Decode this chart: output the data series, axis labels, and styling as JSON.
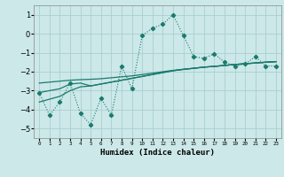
{
  "x": [
    0,
    1,
    2,
    3,
    4,
    5,
    6,
    7,
    8,
    9,
    10,
    11,
    12,
    13,
    14,
    15,
    16,
    17,
    18,
    19,
    20,
    21,
    22,
    23
  ],
  "y_main": [
    -3.1,
    -4.3,
    -3.6,
    -2.6,
    -4.2,
    -4.8,
    -3.4,
    -4.3,
    -1.7,
    -2.9,
    -0.1,
    0.3,
    0.5,
    1.0,
    -0.1,
    -1.2,
    -1.3,
    -1.05,
    -1.5,
    -1.7,
    -1.6,
    -1.2,
    -1.7,
    -1.7
  ],
  "y_line1": [
    -3.1,
    -3.0,
    -2.9,
    -2.65,
    -2.6,
    -2.75,
    -2.65,
    -2.55,
    -2.45,
    -2.35,
    -2.25,
    -2.15,
    -2.05,
    -1.95,
    -1.88,
    -1.82,
    -1.76,
    -1.72,
    -1.67,
    -1.62,
    -1.58,
    -1.54,
    -1.5,
    -1.47
  ],
  "y_line2": [
    -3.6,
    -3.45,
    -3.3,
    -3.0,
    -2.8,
    -2.75,
    -2.65,
    -2.55,
    -2.45,
    -2.35,
    -2.25,
    -2.15,
    -2.05,
    -1.95,
    -1.88,
    -1.82,
    -1.76,
    -1.72,
    -1.67,
    -1.62,
    -1.58,
    -1.54,
    -1.5,
    -1.47
  ],
  "y_line3": [
    -2.6,
    -2.55,
    -2.5,
    -2.45,
    -2.42,
    -2.4,
    -2.37,
    -2.32,
    -2.27,
    -2.22,
    -2.15,
    -2.08,
    -2.0,
    -1.93,
    -1.87,
    -1.82,
    -1.76,
    -1.72,
    -1.67,
    -1.62,
    -1.58,
    -1.54,
    -1.5,
    -1.47
  ],
  "color": "#1a7a6e",
  "bg_color": "#cce8e8",
  "grid_color": "#aacfcf",
  "xlabel": "Humidex (Indice chaleur)",
  "ylim": [
    -5.5,
    1.5
  ],
  "xlim": [
    -0.5,
    23.5
  ],
  "yticks": [
    -5,
    -4,
    -3,
    -2,
    -1,
    0,
    1
  ],
  "xticks": [
    0,
    1,
    2,
    3,
    4,
    5,
    6,
    7,
    8,
    9,
    10,
    11,
    12,
    13,
    14,
    15,
    16,
    17,
    18,
    19,
    20,
    21,
    22,
    23
  ]
}
